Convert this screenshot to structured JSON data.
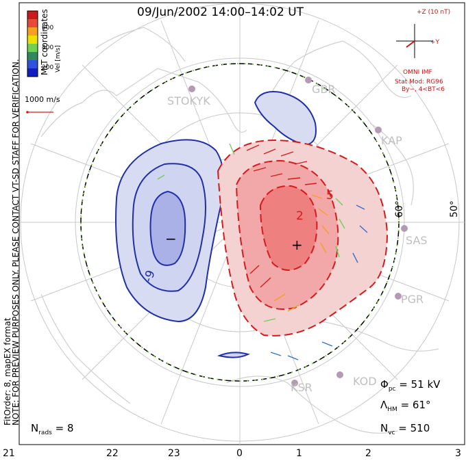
{
  "title": "09/Jun/2002 14:00–14:02 UT",
  "side_notes": {
    "coords": "MLT coordinates",
    "fit": "FitOrder: 8, mapEX format",
    "preview": "NOTE: FOR PREVIEW PURPOSES ONLY. PLEASE CONTACT VT-SD STAFF FOR VERIFICATION."
  },
  "colorbar": {
    "label": "Vel [m/s]",
    "ticks": [
      "600",
      "400",
      "200"
    ],
    "colors": [
      "#cc1a1a",
      "#e84a3a",
      "#f5a020",
      "#f0e000",
      "#72d050",
      "#2e8b57",
      "#3050e0",
      "#1020c0"
    ]
  },
  "scale_vector": "1000 m/s",
  "imf": {
    "z_label": "+Z (10 nT)",
    "y_label": "+Y",
    "omni": "OMNI IMF",
    "model": "Stat Mod: RG96",
    "condition": "By−, 4<BT<6"
  },
  "mlt_labels": [
    "21",
    "22",
    "23",
    "0",
    "1",
    "2",
    "3"
  ],
  "lat_labels": [
    "60°",
    "50°"
  ],
  "stations": [
    "STOKYK",
    "GBR",
    "KAP",
    "SAS",
    "PGR",
    "KOD",
    "KSR"
  ],
  "contour_labels": [
    "-9",
    "2",
    "5"
  ],
  "cell_markers": {
    "min": "−",
    "max": "+"
  },
  "stats": {
    "phi_pc": "= 51 kV",
    "lambda_hm": "= 61°",
    "n_vc": "= 510",
    "n_rads": "= 8"
  },
  "stats_symbols": {
    "phi": "Φ",
    "phi_sub": "pc",
    "lambda": "Λ",
    "lambda_sub": "HM",
    "nvc": "N",
    "nvc_sub": "vc",
    "nrads": "N",
    "nrads_sub": "rads"
  },
  "colors": {
    "negative_fill": "#d8dcf2",
    "negative_core": "#a9b1e6",
    "negative_line": "#1f2fa8",
    "positive_fill": "#f5d2d2",
    "positive_mid": "#f2a8a8",
    "positive_core": "#ee8080",
    "positive_line": "#d51a1a",
    "grid": "#c8c8c8",
    "coast": "#cfcfcf",
    "hmb": "#000000",
    "station": "#b59ab5"
  }
}
